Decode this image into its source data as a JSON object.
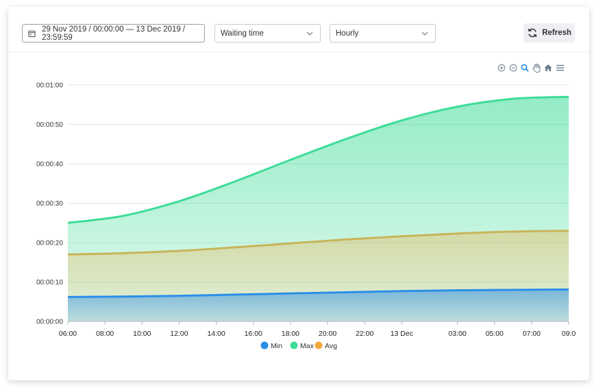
{
  "toolbar": {
    "date_range": "29 Nov 2019 / 00:00:00 — 13 Dec 2019 / 23:59:59",
    "metric_select": "Waiting time",
    "interval_select": "Hourly",
    "refresh_label": "Refresh"
  },
  "chart_tools": [
    "zoom-in-icon",
    "zoom-out-icon",
    "selection-zoom-icon",
    "pan-icon",
    "reset-home-icon",
    "menu-icon"
  ],
  "colors": {
    "min": "#2b8ee8",
    "max": "#3ddc97",
    "avg": "#f2a93b",
    "avg_line": "#c8b45a"
  },
  "chart_data": {
    "type": "area",
    "title": "",
    "xlabel": "",
    "ylabel": "",
    "x_tick_labels": [
      "06:00",
      "08:00",
      "10:00",
      "12:00",
      "14:00",
      "16:00",
      "18:00",
      "20:00",
      "22:00",
      "13 Dec",
      "03:00",
      "05:00",
      "07:00",
      "09:0"
    ],
    "x_tick_hours": [
      0,
      2,
      4,
      6,
      8,
      10,
      12,
      14,
      16,
      18,
      21,
      23,
      25,
      27
    ],
    "x_range_hours": [
      0,
      27
    ],
    "y_tick_labels": [
      "00:00:00",
      "00:00:10",
      "00:00:20",
      "00:00:30",
      "00:00:40",
      "00:00:50",
      "00:01:00"
    ],
    "ylim_seconds": [
      0,
      60
    ],
    "x": [
      0,
      3,
      6,
      9,
      12,
      15,
      18,
      21,
      24,
      27
    ],
    "series": [
      {
        "name": "Min",
        "values": [
          6.2,
          6.3,
          6.5,
          6.8,
          7.1,
          7.4,
          7.7,
          7.9,
          8.0,
          8.1
        ]
      },
      {
        "name": "Max",
        "values": [
          25.0,
          26.8,
          30.5,
          35.5,
          41.0,
          46.3,
          51.0,
          54.5,
          56.5,
          57.0
        ]
      },
      {
        "name": "Avg",
        "values": [
          17.0,
          17.3,
          17.9,
          18.8,
          19.8,
          20.8,
          21.6,
          22.3,
          22.8,
          23.0
        ]
      }
    ],
    "legend": [
      "Min",
      "Max",
      "Avg"
    ],
    "legend_position": "bottom-center",
    "grid": true
  }
}
